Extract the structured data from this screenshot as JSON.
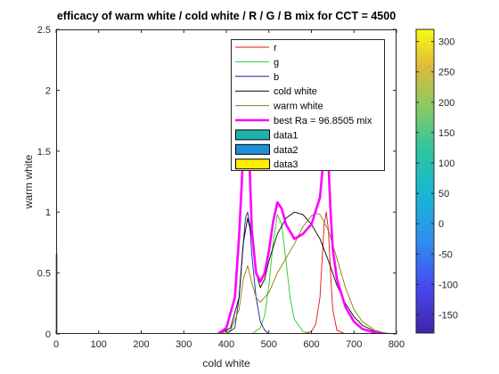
{
  "chart_data": {
    "type": "line",
    "title": "efficacy of warm white / cold white / R / G / B mix for CCT = 4500",
    "xlabel": "cold white",
    "ylabel": "warm white",
    "xlim": [
      0,
      800
    ],
    "ylim": [
      0,
      2.5
    ],
    "x_ticks": [
      "0",
      "100",
      "200",
      "300",
      "400",
      "500",
      "600",
      "700",
      "800"
    ],
    "y_ticks": [
      "0",
      "0.5",
      "1",
      "1.5",
      "2",
      "2.5"
    ],
    "grid": false,
    "legend_position": "top-right",
    "series": [
      {
        "name": "r",
        "color": "#e01010",
        "x": [
          580,
          600,
          610,
          620,
          625,
          630,
          635,
          640,
          645,
          650,
          660,
          680
        ],
        "y": [
          0,
          0.02,
          0.08,
          0.3,
          0.6,
          0.9,
          1.0,
          0.85,
          0.5,
          0.2,
          0.03,
          0
        ]
      },
      {
        "name": "g",
        "color": "#22cc22",
        "x": [
          460,
          480,
          490,
          500,
          510,
          520,
          530,
          540,
          550,
          560,
          580,
          600
        ],
        "y": [
          0,
          0.05,
          0.15,
          0.4,
          0.75,
          0.98,
          0.9,
          0.6,
          0.3,
          0.12,
          0.02,
          0
        ]
      },
      {
        "name": "b",
        "color": "#1a1aa0",
        "x": [
          400,
          420,
          430,
          440,
          445,
          450,
          455,
          460,
          470,
          480,
          490,
          500
        ],
        "y": [
          0,
          0.05,
          0.3,
          0.75,
          0.95,
          1.0,
          0.9,
          0.65,
          0.3,
          0.1,
          0.03,
          0
        ]
      },
      {
        "name": "cold white",
        "color": "#000000",
        "x": [
          380,
          410,
          430,
          440,
          450,
          460,
          470,
          480,
          490,
          500,
          520,
          540,
          560,
          580,
          600,
          620,
          640,
          660,
          680,
          700,
          720,
          750,
          780
        ],
        "y": [
          0,
          0.05,
          0.3,
          0.75,
          0.95,
          0.8,
          0.5,
          0.38,
          0.45,
          0.6,
          0.82,
          0.95,
          1.0,
          0.98,
          0.9,
          0.78,
          0.6,
          0.4,
          0.25,
          0.14,
          0.07,
          0.02,
          0
        ]
      },
      {
        "name": "warm white",
        "color": "#8c7a00",
        "x": [
          380,
          410,
          430,
          440,
          450,
          460,
          470,
          480,
          500,
          520,
          540,
          560,
          580,
          600,
          610,
          620,
          640,
          660,
          680,
          700,
          720,
          750,
          780
        ],
        "y": [
          0,
          0.03,
          0.2,
          0.45,
          0.56,
          0.42,
          0.3,
          0.26,
          0.34,
          0.5,
          0.62,
          0.74,
          0.88,
          0.97,
          0.99,
          0.98,
          0.85,
          0.62,
          0.38,
          0.2,
          0.1,
          0.03,
          0
        ]
      },
      {
        "name": "best Ra = 96.8505 mix",
        "color": "#ff00ff",
        "x": [
          380,
          400,
          420,
          430,
          440,
          445,
          450,
          455,
          460,
          470,
          480,
          490,
          500,
          510,
          520,
          530,
          540,
          560,
          580,
          600,
          620,
          630,
          635,
          640,
          645,
          650,
          660,
          680,
          700,
          720,
          750,
          780
        ],
        "y": [
          0,
          0.05,
          0.3,
          0.8,
          1.5,
          1.75,
          1.7,
          1.35,
          0.85,
          0.5,
          0.43,
          0.5,
          0.68,
          0.92,
          1.08,
          1.03,
          0.9,
          0.78,
          0.82,
          0.9,
          1.12,
          1.5,
          1.76,
          1.4,
          1.0,
          0.7,
          0.45,
          0.22,
          0.1,
          0.04,
          0.01,
          0
        ]
      }
    ],
    "extra_legend_entries": [
      {
        "name": "data1",
        "color": "#20b2aa"
      },
      {
        "name": "data2",
        "color": "#1e90d8"
      },
      {
        "name": "data3",
        "color": "#ffee00"
      }
    ],
    "colorbar": {
      "ticks": [
        "300",
        "250",
        "200",
        "150",
        "100",
        "50",
        "0",
        "-50",
        "-100",
        "-150"
      ],
      "range": [
        -180,
        320
      ]
    }
  }
}
